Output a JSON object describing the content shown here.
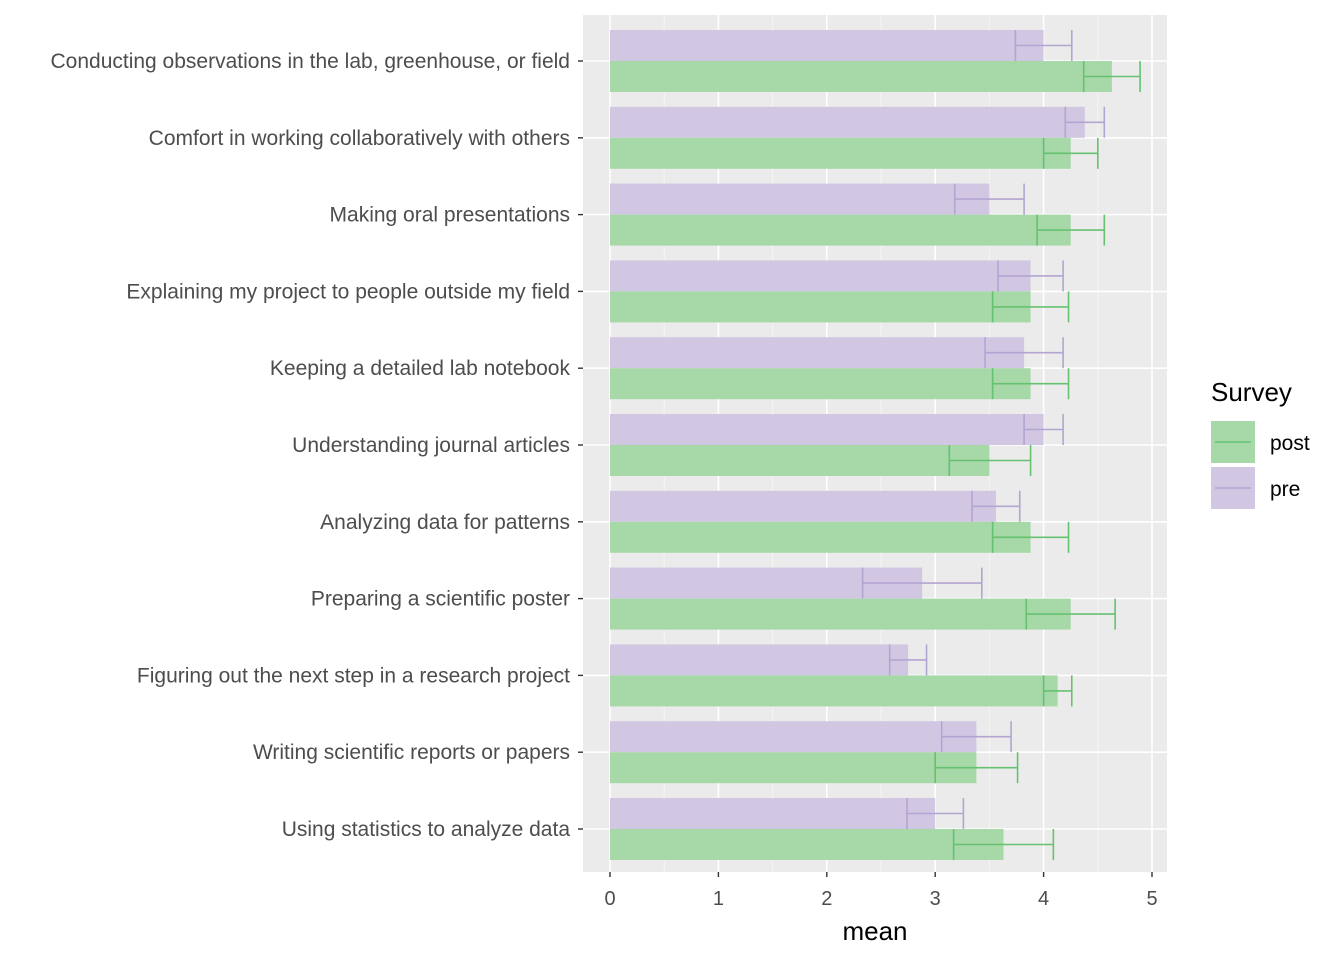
{
  "chart_data": {
    "type": "bar",
    "orientation": "horizontal",
    "xlabel": "mean",
    "ylabel": "",
    "xlim": [
      0,
      5
    ],
    "x_ticks": [
      "0",
      "1",
      "2",
      "3",
      "4",
      "5"
    ],
    "grid": true,
    "legend_title": "Survey",
    "legend_position": "right",
    "categories": [
      "Conducting observations in the lab, greenhouse, or field",
      "Comfort in working collaboratively with others",
      "Making oral presentations",
      "Explaining my project to people outside my field",
      "Keeping a detailed lab notebook",
      "Understanding journal articles",
      "Analyzing data for patterns",
      "Preparing a scientific poster",
      "Figuring out the next step in a research project",
      "Writing scientific reports or papers",
      "Using statistics to analyze data"
    ],
    "series": [
      {
        "name": "post",
        "color": "#a6d8a8",
        "error_color": "#66c270",
        "values": [
          4.63,
          4.25,
          4.25,
          3.88,
          3.88,
          3.5,
          3.88,
          4.25,
          4.13,
          3.38,
          3.63
        ],
        "error_low": [
          4.37,
          4.0,
          3.94,
          3.53,
          3.53,
          3.13,
          3.53,
          3.84,
          4.0,
          3.0,
          3.17
        ],
        "error_high": [
          4.89,
          4.5,
          4.56,
          4.23,
          4.23,
          3.88,
          4.23,
          4.66,
          4.26,
          3.76,
          4.09
        ]
      },
      {
        "name": "pre",
        "color": "#d1c7e2",
        "error_color": "#b3a5d1",
        "values": [
          4.0,
          4.38,
          3.5,
          3.88,
          3.82,
          4.0,
          3.56,
          2.88,
          2.75,
          3.38,
          3.0
        ],
        "error_low": [
          3.74,
          4.2,
          3.18,
          3.58,
          3.46,
          3.82,
          3.34,
          2.33,
          2.58,
          3.06,
          2.74
        ],
        "error_high": [
          4.26,
          4.56,
          3.82,
          4.18,
          4.18,
          4.18,
          3.78,
          3.43,
          2.92,
          3.7,
          3.26
        ]
      }
    ]
  }
}
